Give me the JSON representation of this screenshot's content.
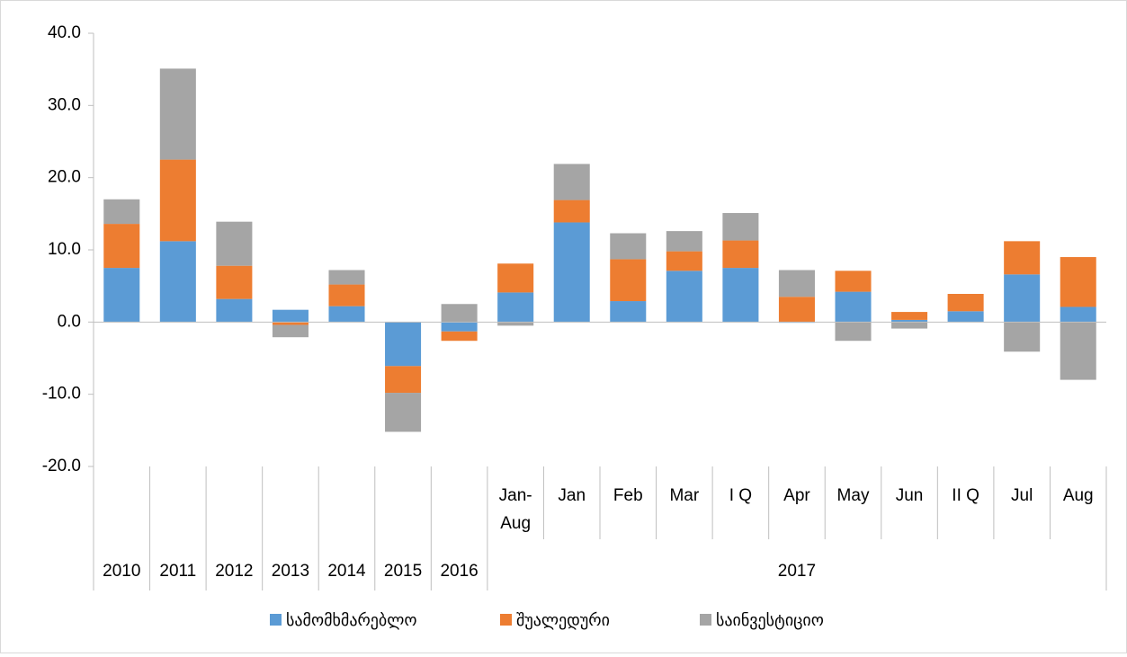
{
  "chart_data": {
    "type": "stacked_bar",
    "category_groups": [
      {
        "name": "2010",
        "categories": [
          null
        ]
      },
      {
        "name": "2011",
        "categories": [
          null
        ]
      },
      {
        "name": "2012",
        "categories": [
          null
        ]
      },
      {
        "name": "2013",
        "categories": [
          null
        ]
      },
      {
        "name": "2014",
        "categories": [
          null
        ]
      },
      {
        "name": "2015",
        "categories": [
          null
        ]
      },
      {
        "name": "2016",
        "categories": [
          null
        ]
      },
      {
        "name": "2017",
        "categories": [
          "Jan-Aug",
          "Jan",
          "Feb",
          "Mar",
          "I Q",
          "Apr",
          "May",
          "Jun",
          "II Q",
          "Jul",
          "Aug"
        ]
      }
    ],
    "series": [
      {
        "name": "სამომხმარებლო",
        "color": "#5b9bd5",
        "values": [
          7.5,
          11.2,
          3.2,
          1.7,
          2.2,
          -6.1,
          -1.3,
          4.1,
          13.8,
          2.9,
          7.1,
          7.5,
          -0.1,
          4.2,
          0.3,
          1.5,
          6.6,
          2.1
        ]
      },
      {
        "name": "შუალედური",
        "color": "#ed7d31",
        "values": [
          6.1,
          11.3,
          4.6,
          -0.4,
          3.0,
          -3.7,
          -1.3,
          4.0,
          3.1,
          5.8,
          2.7,
          3.8,
          3.5,
          2.9,
          1.1,
          2.4,
          4.6,
          6.9
        ]
      },
      {
        "name": "საინვესტიციო",
        "color": "#a5a5a5",
        "values": [
          3.4,
          12.6,
          6.1,
          -1.7,
          2.0,
          -5.4,
          2.5,
          -0.5,
          5.0,
          3.6,
          2.8,
          3.8,
          3.7,
          -2.6,
          -0.9,
          0,
          -4.1,
          -8.0
        ]
      }
    ],
    "ylim": [
      -20,
      40
    ],
    "yticks": [
      {
        "value": -20,
        "label": "-20.0"
      },
      {
        "value": -10,
        "label": "-10.0"
      },
      {
        "value": 0,
        "label": "0.0"
      },
      {
        "value": 10,
        "label": "10.0"
      },
      {
        "value": 20,
        "label": "20.0"
      },
      {
        "value": 30,
        "label": "30.0"
      },
      {
        "value": 40,
        "label": "40.0"
      }
    ],
    "legend": "bottom"
  }
}
